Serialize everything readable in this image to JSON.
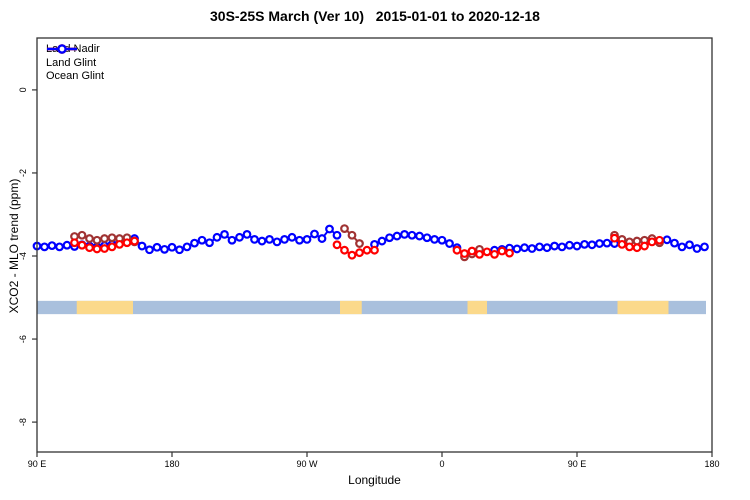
{
  "chart_data": {
    "type": "line",
    "title": "30S-25S March (Ver 10)   2015-01-01 to 2020-12-18",
    "x_axis": {
      "label": "Longitude",
      "range": [
        0,
        450
      ],
      "note": "longitude axis starts at 90E and wraps eastward around the globe to 180",
      "ticks": [
        {
          "pos": 0,
          "label": "90 E"
        },
        {
          "pos": 90,
          "label": "180"
        },
        {
          "pos": 180,
          "label": "90 W"
        },
        {
          "pos": 270,
          "label": "0"
        },
        {
          "pos": 360,
          "label": "90 E"
        },
        {
          "pos": 450,
          "label": "180"
        }
      ]
    },
    "y_axis": {
      "label": "XCO2 - MLO trend (ppm)",
      "range": [
        -8.72,
        1.25
      ],
      "ticks": [
        {
          "pos": 0,
          "label": "0"
        },
        {
          "pos": -2,
          "label": "-2"
        },
        {
          "pos": -4,
          "label": "-4"
        },
        {
          "pos": -6,
          "label": "-6"
        },
        {
          "pos": -8,
          "label": "-8"
        }
      ]
    },
    "legend": [
      {
        "label": "Land Nadir",
        "color": "#a03333"
      },
      {
        "label": "Land Glint",
        "color": "#ff0000"
      },
      {
        "label": "Ocean Glint",
        "color": "#0000ff"
      }
    ],
    "series": [
      {
        "name": "Ocean Glint",
        "color": "#0000ff",
        "segments": [
          [
            [
              0,
              -3.76
            ],
            [
              5,
              -3.78
            ],
            [
              10,
              -3.75
            ],
            [
              15,
              -3.78
            ],
            [
              20,
              -3.74
            ],
            [
              25,
              -3.77
            ],
            [
              30,
              -3.73
            ],
            [
              35,
              -3.76
            ],
            [
              40,
              -3.78
            ],
            [
              45,
              -3.75
            ],
            [
              50,
              -3.72
            ],
            [
              55,
              -3.68
            ],
            [
              60,
              -3.62
            ],
            [
              65,
              -3.58
            ],
            [
              70,
              -3.76
            ],
            [
              75,
              -3.85
            ],
            [
              80,
              -3.79
            ],
            [
              85,
              -3.84
            ],
            [
              90,
              -3.79
            ],
            [
              95,
              -3.85
            ],
            [
              100,
              -3.78
            ],
            [
              105,
              -3.69
            ],
            [
              110,
              -3.62
            ],
            [
              115,
              -3.68
            ],
            [
              120,
              -3.55
            ],
            [
              125,
              -3.48
            ],
            [
              130,
              -3.62
            ],
            [
              135,
              -3.55
            ],
            [
              140,
              -3.48
            ],
            [
              145,
              -3.6
            ],
            [
              150,
              -3.64
            ],
            [
              155,
              -3.6
            ],
            [
              160,
              -3.66
            ],
            [
              165,
              -3.6
            ],
            [
              170,
              -3.55
            ],
            [
              175,
              -3.62
            ],
            [
              180,
              -3.6
            ],
            [
              185,
              -3.47
            ],
            [
              190,
              -3.58
            ],
            [
              195,
              -3.35
            ],
            [
              200,
              -3.5
            ]
          ],
          [
            [
              225,
              -3.72
            ],
            [
              230,
              -3.64
            ],
            [
              235,
              -3.56
            ],
            [
              240,
              -3.52
            ],
            [
              245,
              -3.48
            ],
            [
              250,
              -3.5
            ],
            [
              255,
              -3.52
            ],
            [
              260,
              -3.56
            ],
            [
              265,
              -3.6
            ],
            [
              270,
              -3.62
            ],
            [
              275,
              -3.7
            ],
            [
              280,
              -3.8
            ]
          ],
          [
            [
              305,
              -3.86
            ],
            [
              310,
              -3.84
            ],
            [
              315,
              -3.81
            ],
            [
              320,
              -3.83
            ],
            [
              325,
              -3.8
            ],
            [
              330,
              -3.82
            ],
            [
              335,
              -3.78
            ],
            [
              340,
              -3.8
            ],
            [
              345,
              -3.76
            ],
            [
              350,
              -3.78
            ],
            [
              355,
              -3.74
            ],
            [
              360,
              -3.76
            ],
            [
              365,
              -3.72
            ],
            [
              370,
              -3.73
            ],
            [
              375,
              -3.7
            ],
            [
              380,
              -3.69
            ],
            [
              385,
              -3.7
            ]
          ],
          [
            [
              420,
              -3.61
            ],
            [
              425,
              -3.69
            ],
            [
              430,
              -3.78
            ],
            [
              435,
              -3.73
            ],
            [
              440,
              -3.82
            ],
            [
              445,
              -3.78
            ]
          ]
        ]
      },
      {
        "name": "Land Nadir",
        "color": "#a03333",
        "segments": [
          [
            [
              25,
              -3.53
            ],
            [
              30,
              -3.5
            ],
            [
              35,
              -3.58
            ],
            [
              40,
              -3.62
            ],
            [
              45,
              -3.58
            ],
            [
              50,
              -3.56
            ],
            [
              55,
              -3.58
            ],
            [
              60,
              -3.56
            ],
            [
              65,
              -3.66
            ]
          ],
          [
            [
              205,
              -3.34
            ],
            [
              210,
              -3.5
            ],
            [
              215,
              -3.7
            ]
          ],
          [
            [
              285,
              -4.02
            ],
            [
              290,
              -3.95
            ],
            [
              295,
              -3.84
            ]
          ],
          [
            [
              385,
              -3.5
            ],
            [
              390,
              -3.6
            ],
            [
              395,
              -3.66
            ],
            [
              400,
              -3.64
            ],
            [
              405,
              -3.62
            ],
            [
              410,
              -3.58
            ],
            [
              415,
              -3.68
            ]
          ]
        ]
      },
      {
        "name": "Land Glint",
        "color": "#ff0000",
        "segments": [
          [
            [
              25,
              -3.68
            ],
            [
              30,
              -3.74
            ],
            [
              35,
              -3.8
            ],
            [
              40,
              -3.83
            ],
            [
              45,
              -3.82
            ],
            [
              50,
              -3.78
            ],
            [
              55,
              -3.72
            ],
            [
              60,
              -3.68
            ],
            [
              65,
              -3.64
            ]
          ],
          [
            [
              200,
              -3.73
            ],
            [
              205,
              -3.86
            ],
            [
              210,
              -3.98
            ],
            [
              215,
              -3.92
            ],
            [
              220,
              -3.86
            ],
            [
              225,
              -3.86
            ]
          ],
          [
            [
              280,
              -3.86
            ],
            [
              285,
              -3.94
            ],
            [
              290,
              -3.88
            ],
            [
              295,
              -3.96
            ],
            [
              300,
              -3.9
            ],
            [
              305,
              -3.96
            ],
            [
              310,
              -3.88
            ],
            [
              315,
              -3.93
            ]
          ],
          [
            [
              385,
              -3.57
            ],
            [
              390,
              -3.72
            ],
            [
              395,
              -3.78
            ],
            [
              400,
              -3.8
            ],
            [
              405,
              -3.76
            ],
            [
              410,
              -3.66
            ],
            [
              415,
              -3.62
            ]
          ]
        ]
      }
    ],
    "surface_bar": {
      "description": "land/ocean surface-type strip along longitude",
      "ocean_color": "#a9c0dd",
      "land_color": "#fbd98b",
      "range_deg": [
        0,
        446
      ],
      "y_range": [
        -5.08,
        -5.4
      ],
      "land_segments_deg": [
        [
          26.5,
          64
        ],
        [
          202,
          216.5
        ],
        [
          287,
          300
        ],
        [
          387,
          421
        ]
      ]
    }
  }
}
